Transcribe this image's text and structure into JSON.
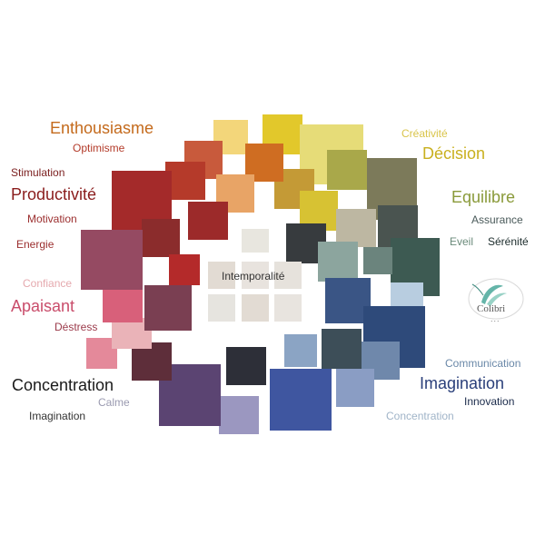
{
  "labels": {
    "enthousiasme": {
      "text": "Enthousiasme",
      "color": "#c46a1c"
    },
    "optimisme": {
      "text": "Optimisme",
      "color": "#b33b2a"
    },
    "stimulation": {
      "text": "Stimulation",
      "color": "#7a1d1d"
    },
    "productivite": {
      "text": "Productivité",
      "color": "#8a1c1c"
    },
    "motivation": {
      "text": "Motivation",
      "color": "#9b2e2e"
    },
    "energie": {
      "text": "Energie",
      "color": "#9b2e2e"
    },
    "confiance": {
      "text": "Confiance",
      "color": "#e5a9ae"
    },
    "apaisant": {
      "text": "Apaisant",
      "color": "#c94d6b"
    },
    "destress": {
      "text": "Déstress",
      "color": "#9b3a4a"
    },
    "concentration_left": {
      "text": "Concentration",
      "color": "#1a1a1a"
    },
    "calme": {
      "text": "Calme",
      "color": "#9a9ab0"
    },
    "imagination_left": {
      "text": "Imagination",
      "color": "#333333"
    },
    "creativite": {
      "text": "Créativité",
      "color": "#d9c44a"
    },
    "decision": {
      "text": "Décision",
      "color": "#c9b01f"
    },
    "equilibre": {
      "text": "Equilibre",
      "color": "#8a9a3a"
    },
    "assurance": {
      "text": "Assurance",
      "color": "#4a5a5a"
    },
    "eveil": {
      "text": "Eveil",
      "color": "#6a8a7a"
    },
    "serenite": {
      "text": "Sérénité",
      "color": "#1a2a2a"
    },
    "communication": {
      "text": "Communication",
      "color": "#6a88a8"
    },
    "imagination_right": {
      "text": "Imagination",
      "color": "#2a3f7a"
    },
    "innovation": {
      "text": "Innovation",
      "color": "#1a2a4a"
    },
    "concentration_right": {
      "text": "Concentration",
      "color": "#a0b4c8"
    },
    "intemporalite": {
      "text": "Intemporalité",
      "color": "#333333"
    }
  },
  "logo": {
    "name": "Colibri",
    "dots": "..."
  },
  "swatch_colors": {
    "yellow_light": "#f3d67a",
    "yellow": "#e2c82b",
    "straw": "#e6dc78",
    "olive_yellow": "#a9a84a",
    "olive_dark": "#7c7a5a",
    "teal_dark": "#3d5a52",
    "slate_green": "#4a5450",
    "taupe": "#bdb7a2",
    "charcoal": "#373b3e",
    "sage": "#8ca59e",
    "mist_blue": "#b8cde0",
    "navy": "#2e4a7a",
    "denim": "#3a5585",
    "steel": "#6f88ab",
    "gunmetal": "#3d4e58",
    "periwinkle": "#8a9dc4",
    "royal": "#3f56a0",
    "ink": "#2d2f38",
    "lavender": "#9b97c0",
    "purple": "#5b4472",
    "plum": "#5e2e3a",
    "rose": "#d8607a",
    "pink_light": "#e4a7ad",
    "mauve": "#7a3f52",
    "burgundy": "#8a4a62",
    "red": "#a42020",
    "brick": "#a72b2b",
    "rust": "#c03c2c",
    "orange": "#cf6d22",
    "peach": "#e8a466",
    "mustard": "#c49a36",
    "neutral": "#e6e2da"
  }
}
